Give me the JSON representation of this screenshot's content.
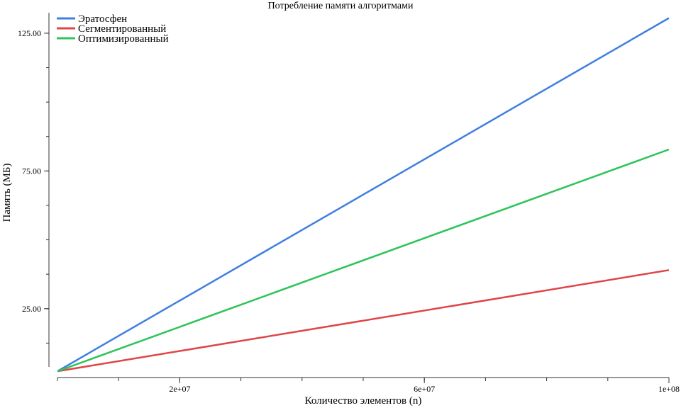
{
  "chart_data": {
    "type": "line",
    "title": "Потребление памяти алгоритмами",
    "xlabel": "Количество элементов (n)",
    "ylabel": "Память (МБ)",
    "xlim": [
      0,
      100000000
    ],
    "ylim": [
      0,
      135
    ],
    "x_ticks": [
      {
        "value": 20000000,
        "label": "2e+07"
      },
      {
        "value": 60000000,
        "label": "6e+07"
      },
      {
        "value": 100000000,
        "label": "1e+08"
      }
    ],
    "x_minor_ticks": [
      0,
      10000000,
      20000000,
      30000000,
      40000000,
      50000000,
      60000000,
      70000000,
      80000000,
      90000000,
      100000000
    ],
    "y_ticks": [
      {
        "value": 25,
        "label": "25.00"
      },
      {
        "value": 75,
        "label": "75.00"
      },
      {
        "value": 125,
        "label": "125.00"
      }
    ],
    "y_minor_ticks": [
      0,
      12.5,
      25,
      37.5,
      50,
      62.5,
      75,
      87.5,
      100,
      112.5,
      125
    ],
    "legend_position": "top-left",
    "series": [
      {
        "name": "Эратосфен",
        "color": "#3f7fe0",
        "x": [
          0,
          100000000
        ],
        "y": [
          2.3,
          130.5
        ]
      },
      {
        "name": "Сегментированный",
        "color": "#e04545",
        "x": [
          0,
          100000000
        ],
        "y": [
          2.3,
          39.0
        ]
      },
      {
        "name": "Оптимизированный",
        "color": "#2ec45a",
        "x": [
          0,
          100000000
        ],
        "y": [
          2.3,
          82.8
        ]
      }
    ]
  }
}
